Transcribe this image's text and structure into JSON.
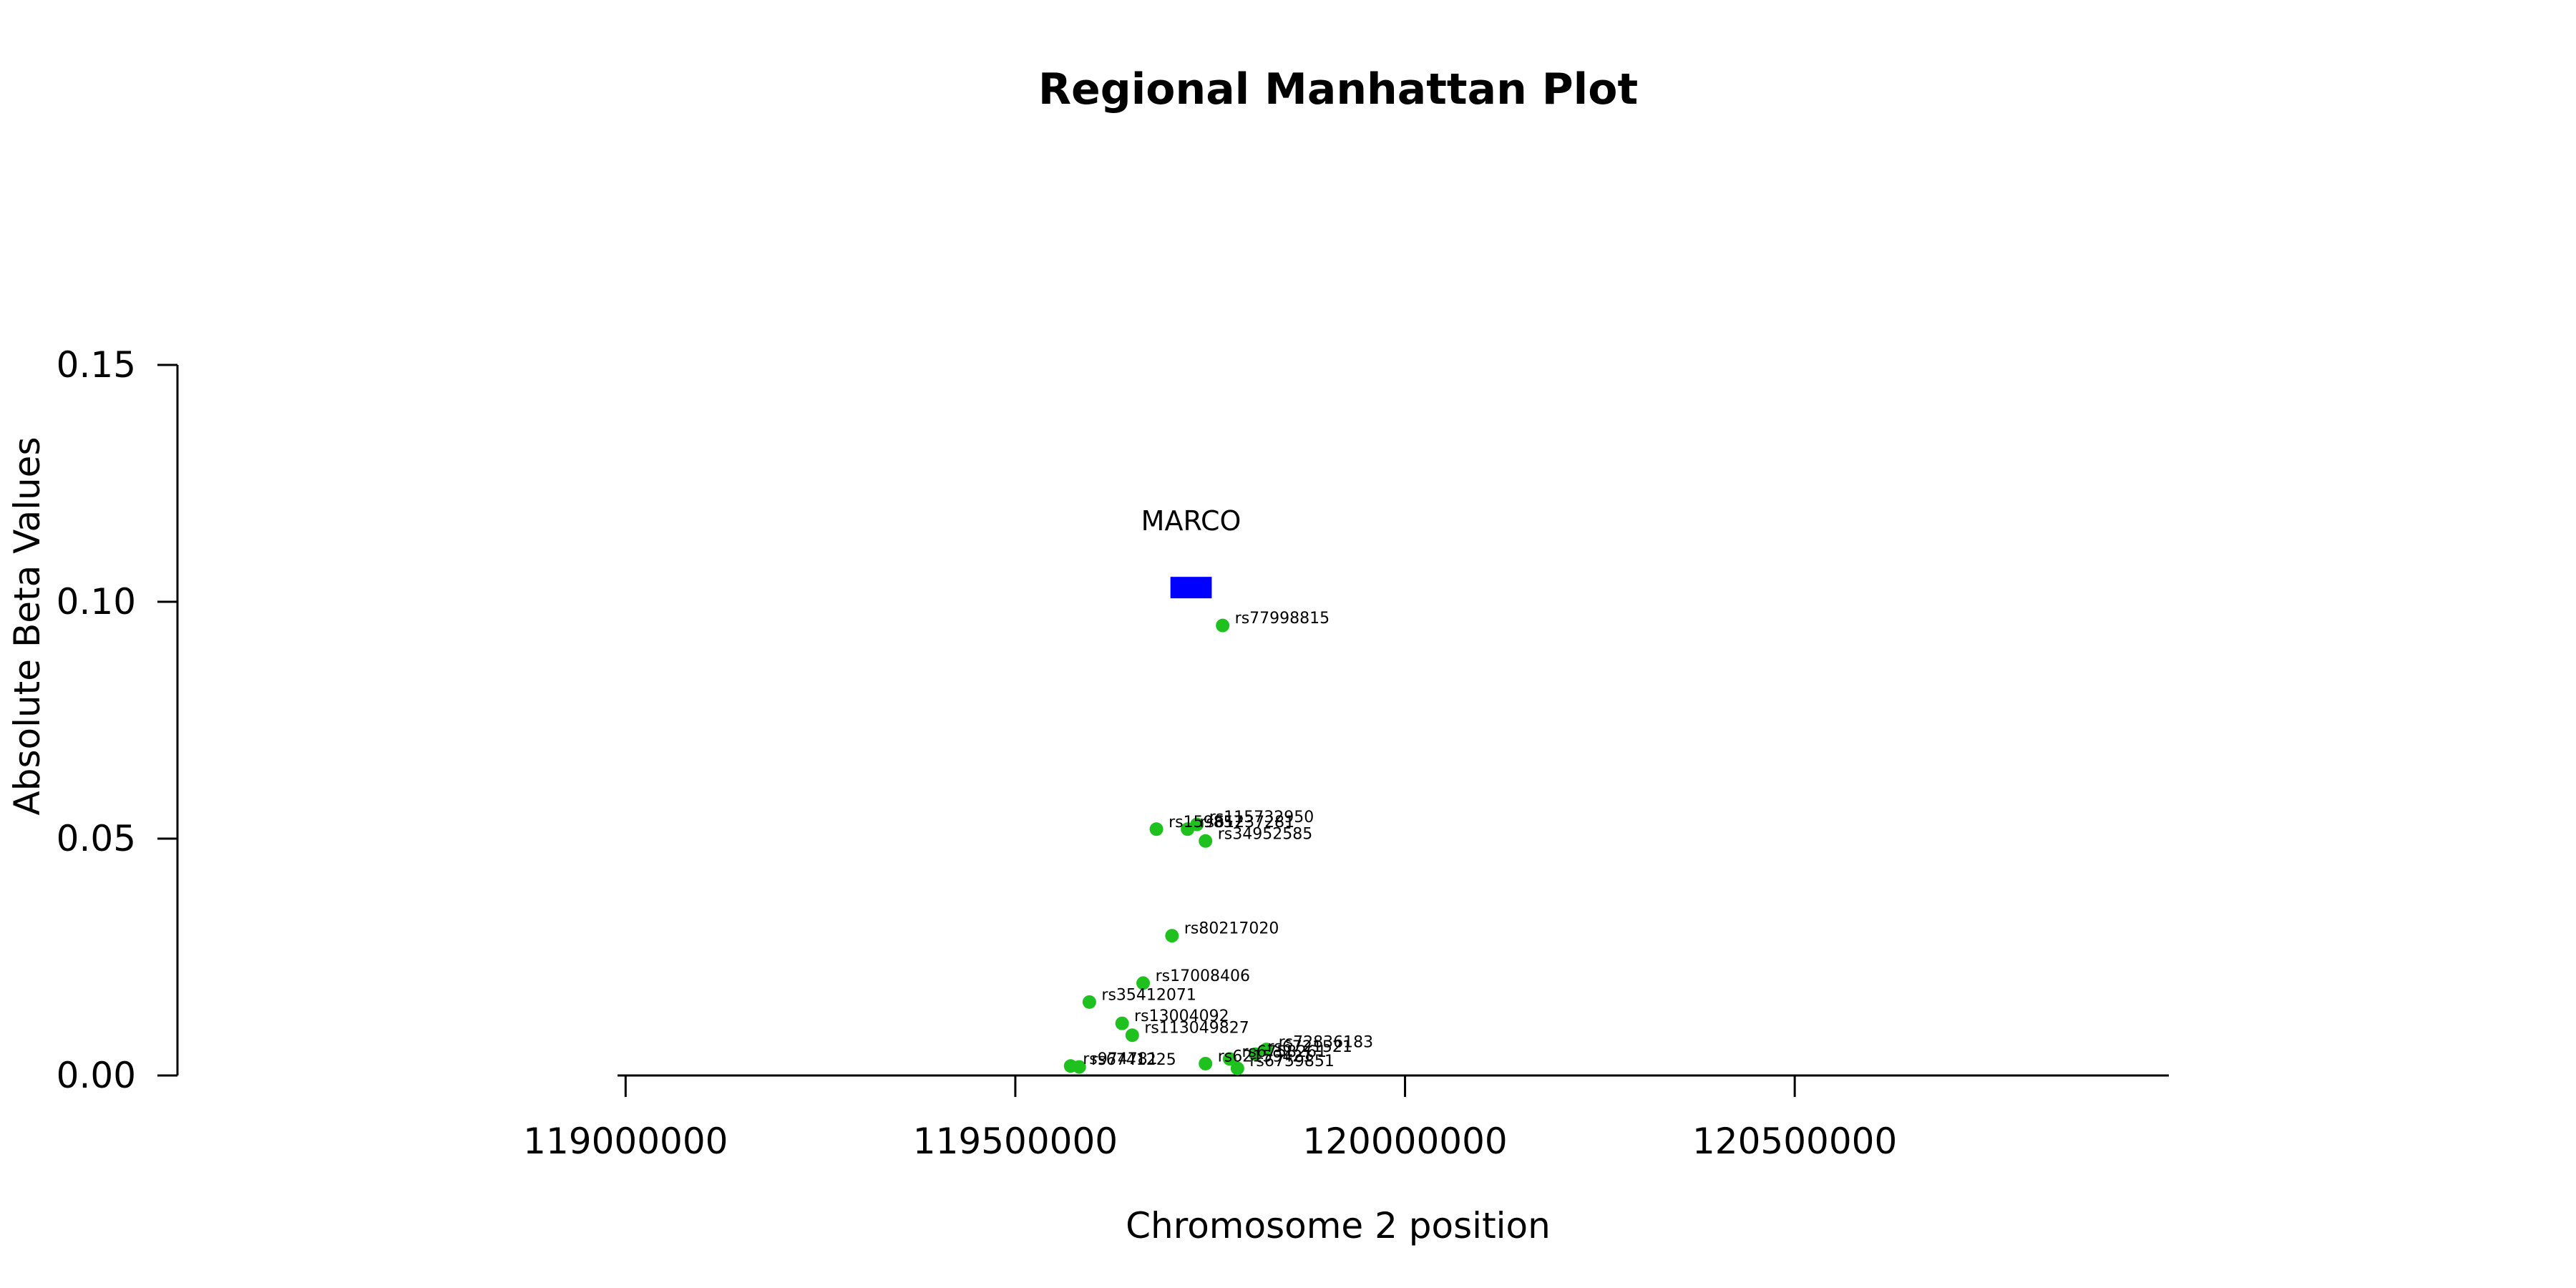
{
  "chart_data": {
    "type": "scatter",
    "title": "Regional Manhattan Plot",
    "xlabel": "Chromosome 2 position",
    "ylabel": "Absolute Beta Values",
    "xlim": [
      118425000,
      120980000
    ],
    "ylim": [
      0,
      0.15
    ],
    "x_ticks": [
      119000000,
      119500000,
      120000000,
      120500000
    ],
    "x_tick_labels": [
      "119000000",
      "119500000",
      "120000000",
      "120500000"
    ],
    "y_ticks": [
      0,
      0.05,
      0.1,
      0.15
    ],
    "y_tick_labels": [
      "0.00",
      "0.05",
      "0.10",
      "0.15"
    ],
    "point_color": "#1fc11f",
    "gene_color": "#0000ff",
    "genes": [
      {
        "name": "MARCO",
        "start": 119699000,
        "end": 119752000,
        "y": 0.103
      }
    ],
    "points": [
      {
        "label": "rs77998815",
        "x": 119766000,
        "y": 0.095
      },
      {
        "label": "rs159857",
        "x": 119681000,
        "y": 0.052
      },
      {
        "label": "rs61237281",
        "x": 119721000,
        "y": 0.052
      },
      {
        "label": "rs115732950",
        "x": 119733000,
        "y": 0.053
      },
      {
        "label": "rs34952585",
        "x": 119744000,
        "y": 0.0495
      },
      {
        "label": "rs80217020",
        "x": 119701000,
        "y": 0.0295
      },
      {
        "label": "rs17008406",
        "x": 119664000,
        "y": 0.0195
      },
      {
        "label": "rs35412071",
        "x": 119595000,
        "y": 0.0155
      },
      {
        "label": "rs13004092",
        "x": 119637000,
        "y": 0.011
      },
      {
        "label": "rs113049827",
        "x": 119650000,
        "y": 0.0085
      },
      {
        "label": "rs72836183",
        "x": 119822000,
        "y": 0.0055
      },
      {
        "label": "rs6721521",
        "x": 119808000,
        "y": 0.0045
      },
      {
        "label": "rs6758261",
        "x": 119775000,
        "y": 0.0035
      },
      {
        "label": "rs6759851",
        "x": 119785000,
        "y": 0.0015
      },
      {
        "label": "rs62159421",
        "x": 119744000,
        "y": 0.0025
      },
      {
        "label": "rs974781",
        "x": 119571000,
        "y": 0.002
      },
      {
        "label": "rs6741225",
        "x": 119582000,
        "y": 0.0018
      }
    ]
  }
}
